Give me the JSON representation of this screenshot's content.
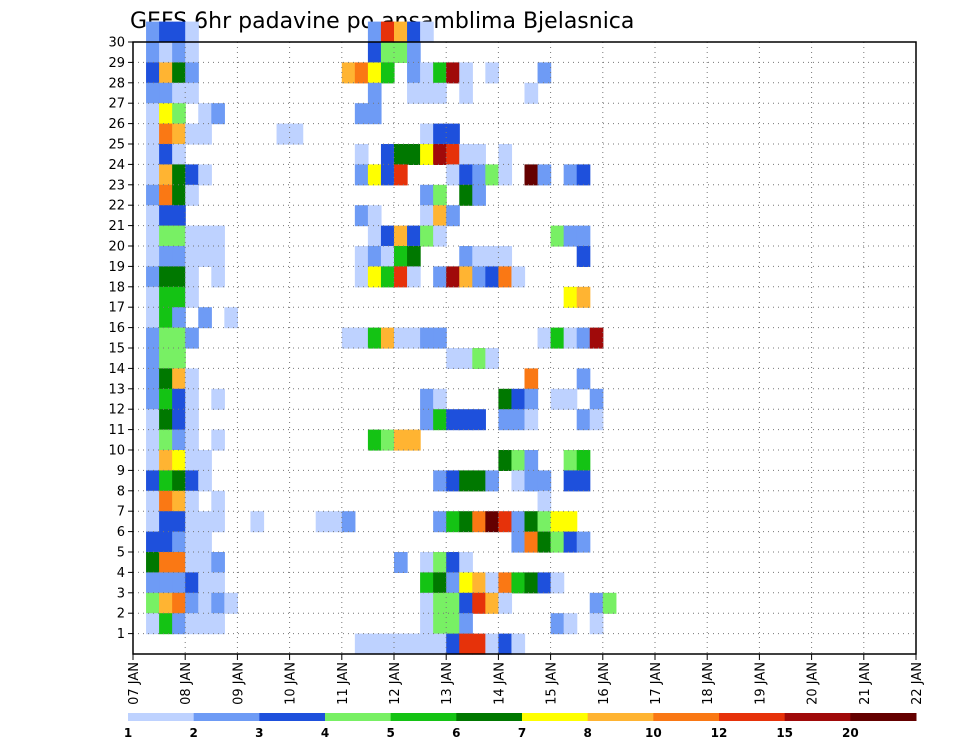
{
  "chart_data": {
    "type": "heatmap",
    "title": "GEFS 6hr padavine po ansamblima Bjelasnica",
    "xlabel": "",
    "ylabel": "",
    "x_ticks": [
      "07 JAN",
      "08 JAN",
      "09 JAN",
      "10 JAN",
      "11 JAN",
      "12 JAN",
      "13 JAN",
      "14 JAN",
      "15 JAN",
      "16 JAN",
      "17 JAN",
      "18 JAN",
      "19 JAN",
      "20 JAN",
      "21 JAN",
      "22 JAN"
    ],
    "y_ticks": [
      "1",
      "2",
      "3",
      "4",
      "5",
      "6",
      "7",
      "8",
      "9",
      "10",
      "11",
      "12",
      "13",
      "14",
      "15",
      "16",
      "17",
      "18",
      "19",
      "20",
      "21",
      "22",
      "23",
      "24",
      "25",
      "26",
      "27",
      "28",
      "29",
      "30"
    ],
    "xlim": [
      0,
      60
    ],
    "ylim": [
      0,
      30
    ],
    "grid": true,
    "colorbar": {
      "colors": [
        "#bed2ff",
        "#6e9bf5",
        "#1e50dc",
        "#78f064",
        "#14c314",
        "#007800",
        "#ffff00",
        "#ffb432",
        "#fa7814",
        "#e6320a",
        "#a00a0a",
        "#640000"
      ],
      "labels": [
        "1",
        "2",
        "3",
        "4",
        "5",
        "6",
        "7",
        "8",
        "10",
        "12",
        "15",
        "20"
      ]
    },
    "cells": [
      [
        1,
        30,
        1
      ],
      [
        2,
        30,
        2
      ],
      [
        3,
        30,
        2
      ],
      [
        4,
        30,
        0
      ],
      [
        18,
        30,
        1
      ],
      [
        19,
        30,
        9
      ],
      [
        20,
        30,
        7
      ],
      [
        21,
        30,
        2
      ],
      [
        22,
        30,
        0
      ],
      [
        1,
        29,
        1
      ],
      [
        2,
        29,
        0
      ],
      [
        3,
        29,
        1
      ],
      [
        4,
        29,
        0
      ],
      [
        18,
        29,
        2
      ],
      [
        19,
        29,
        3
      ],
      [
        20,
        29,
        3
      ],
      [
        21,
        29,
        1
      ],
      [
        1,
        28,
        2
      ],
      [
        2,
        28,
        7
      ],
      [
        3,
        28,
        5
      ],
      [
        4,
        28,
        1
      ],
      [
        16,
        28,
        7
      ],
      [
        17,
        28,
        8
      ],
      [
        18,
        28,
        6
      ],
      [
        19,
        28,
        4
      ],
      [
        21,
        28,
        1
      ],
      [
        22,
        28,
        0
      ],
      [
        23,
        28,
        4
      ],
      [
        24,
        28,
        10
      ],
      [
        25,
        28,
        0
      ],
      [
        27,
        28,
        0
      ],
      [
        31,
        28,
        1
      ],
      [
        1,
        27,
        1
      ],
      [
        2,
        27,
        1
      ],
      [
        3,
        27,
        0
      ],
      [
        4,
        27,
        0
      ],
      [
        18,
        27,
        1
      ],
      [
        21,
        27,
        0
      ],
      [
        22,
        27,
        0
      ],
      [
        23,
        27,
        0
      ],
      [
        25,
        27,
        0
      ],
      [
        30,
        27,
        0
      ],
      [
        1,
        26,
        0
      ],
      [
        2,
        26,
        6
      ],
      [
        3,
        26,
        3
      ],
      [
        5,
        26,
        0
      ],
      [
        6,
        26,
        1
      ],
      [
        17,
        26,
        1
      ],
      [
        18,
        26,
        1
      ],
      [
        1,
        25,
        0
      ],
      [
        2,
        25,
        8
      ],
      [
        3,
        25,
        7
      ],
      [
        4,
        25,
        0
      ],
      [
        5,
        25,
        0
      ],
      [
        11,
        25,
        0
      ],
      [
        12,
        25,
        0
      ],
      [
        22,
        25,
        0
      ],
      [
        23,
        25,
        2
      ],
      [
        24,
        25,
        2
      ],
      [
        1,
        24,
        0
      ],
      [
        2,
        24,
        2
      ],
      [
        3,
        24,
        0
      ],
      [
        17,
        24,
        0
      ],
      [
        19,
        24,
        2
      ],
      [
        20,
        24,
        5
      ],
      [
        21,
        24,
        5
      ],
      [
        22,
        24,
        6
      ],
      [
        23,
        24,
        10
      ],
      [
        24,
        24,
        9
      ],
      [
        25,
        24,
        0
      ],
      [
        26,
        24,
        0
      ],
      [
        28,
        24,
        0
      ],
      [
        1,
        23,
        0
      ],
      [
        2,
        23,
        7
      ],
      [
        3,
        23,
        5
      ],
      [
        4,
        23,
        2
      ],
      [
        5,
        23,
        0
      ],
      [
        17,
        23,
        1
      ],
      [
        18,
        23,
        6
      ],
      [
        19,
        23,
        2
      ],
      [
        20,
        23,
        9
      ],
      [
        24,
        23,
        0
      ],
      [
        25,
        23,
        2
      ],
      [
        26,
        23,
        1
      ],
      [
        27,
        23,
        3
      ],
      [
        28,
        23,
        0
      ],
      [
        30,
        23,
        11
      ],
      [
        31,
        23,
        1
      ],
      [
        33,
        23,
        1
      ],
      [
        34,
        23,
        2
      ],
      [
        1,
        22,
        1
      ],
      [
        2,
        22,
        8
      ],
      [
        3,
        22,
        5
      ],
      [
        4,
        22,
        0
      ],
      [
        22,
        22,
        1
      ],
      [
        23,
        22,
        3
      ],
      [
        25,
        22,
        5
      ],
      [
        26,
        22,
        1
      ],
      [
        1,
        21,
        0
      ],
      [
        2,
        21,
        2
      ],
      [
        3,
        21,
        2
      ],
      [
        17,
        21,
        1
      ],
      [
        18,
        21,
        0
      ],
      [
        22,
        21,
        0
      ],
      [
        23,
        21,
        7
      ],
      [
        24,
        21,
        1
      ],
      [
        1,
        20,
        0
      ],
      [
        2,
        20,
        3
      ],
      [
        3,
        20,
        3
      ],
      [
        4,
        20,
        0
      ],
      [
        5,
        20,
        0
      ],
      [
        6,
        20,
        0
      ],
      [
        18,
        20,
        0
      ],
      [
        19,
        20,
        2
      ],
      [
        20,
        20,
        7
      ],
      [
        21,
        20,
        2
      ],
      [
        22,
        20,
        3
      ],
      [
        23,
        20,
        0
      ],
      [
        32,
        20,
        3
      ],
      [
        33,
        20,
        1
      ],
      [
        34,
        20,
        1
      ],
      [
        1,
        19,
        0
      ],
      [
        2,
        19,
        1
      ],
      [
        3,
        19,
        1
      ],
      [
        4,
        19,
        0
      ],
      [
        5,
        19,
        0
      ],
      [
        6,
        19,
        0
      ],
      [
        17,
        19,
        0
      ],
      [
        18,
        19,
        1
      ],
      [
        19,
        19,
        0
      ],
      [
        20,
        19,
        4
      ],
      [
        21,
        19,
        5
      ],
      [
        25,
        19,
        1
      ],
      [
        26,
        19,
        0
      ],
      [
        27,
        19,
        0
      ],
      [
        28,
        19,
        0
      ],
      [
        34,
        19,
        2
      ],
      [
        1,
        18,
        1
      ],
      [
        2,
        18,
        5
      ],
      [
        3,
        18,
        5
      ],
      [
        4,
        18,
        0
      ],
      [
        6,
        18,
        0
      ],
      [
        17,
        18,
        0
      ],
      [
        18,
        18,
        6
      ],
      [
        19,
        18,
        4
      ],
      [
        20,
        18,
        9
      ],
      [
        21,
        18,
        0
      ],
      [
        23,
        18,
        1
      ],
      [
        24,
        18,
        10
      ],
      [
        25,
        18,
        7
      ],
      [
        26,
        18,
        1
      ],
      [
        27,
        18,
        2
      ],
      [
        28,
        18,
        8
      ],
      [
        29,
        18,
        0
      ],
      [
        1,
        17,
        0
      ],
      [
        2,
        17,
        4
      ],
      [
        3,
        17,
        4
      ],
      [
        4,
        17,
        0
      ],
      [
        33,
        17,
        6
      ],
      [
        34,
        17,
        7
      ],
      [
        1,
        16,
        0
      ],
      [
        2,
        16,
        4
      ],
      [
        3,
        16,
        1
      ],
      [
        5,
        16,
        1
      ],
      [
        7,
        16,
        0
      ],
      [
        1,
        15,
        1
      ],
      [
        2,
        15,
        3
      ],
      [
        3,
        15,
        3
      ],
      [
        4,
        15,
        1
      ],
      [
        16,
        15,
        0
      ],
      [
        17,
        15,
        0
      ],
      [
        18,
        15,
        4
      ],
      [
        19,
        15,
        7
      ],
      [
        20,
        15,
        0
      ],
      [
        21,
        15,
        0
      ],
      [
        22,
        15,
        1
      ],
      [
        23,
        15,
        1
      ],
      [
        31,
        15,
        0
      ],
      [
        32,
        15,
        4
      ],
      [
        33,
        15,
        0
      ],
      [
        34,
        15,
        1
      ],
      [
        35,
        15,
        10
      ],
      [
        1,
        14,
        1
      ],
      [
        2,
        14,
        3
      ],
      [
        3,
        14,
        3
      ],
      [
        24,
        14,
        0
      ],
      [
        25,
        14,
        0
      ],
      [
        26,
        14,
        3
      ],
      [
        27,
        14,
        0
      ],
      [
        1,
        13,
        1
      ],
      [
        2,
        13,
        5
      ],
      [
        3,
        13,
        7
      ],
      [
        4,
        13,
        0
      ],
      [
        30,
        13,
        8
      ],
      [
        34,
        13,
        1
      ],
      [
        1,
        12,
        1
      ],
      [
        2,
        12,
        4
      ],
      [
        3,
        12,
        2
      ],
      [
        4,
        12,
        0
      ],
      [
        6,
        12,
        0
      ],
      [
        22,
        12,
        1
      ],
      [
        23,
        12,
        0
      ],
      [
        28,
        12,
        5
      ],
      [
        29,
        12,
        2
      ],
      [
        30,
        12,
        1
      ],
      [
        32,
        12,
        0
      ],
      [
        33,
        12,
        0
      ],
      [
        35,
        12,
        1
      ],
      [
        1,
        11,
        0
      ],
      [
        2,
        11,
        5
      ],
      [
        3,
        11,
        2
      ],
      [
        4,
        11,
        0
      ],
      [
        22,
        11,
        1
      ],
      [
        23,
        11,
        4
      ],
      [
        24,
        11,
        2
      ],
      [
        25,
        11,
        2
      ],
      [
        26,
        11,
        2
      ],
      [
        28,
        11,
        1
      ],
      [
        29,
        11,
        1
      ],
      [
        30,
        11,
        0
      ],
      [
        34,
        11,
        1
      ],
      [
        35,
        11,
        0
      ],
      [
        1,
        10,
        0
      ],
      [
        2,
        10,
        3
      ],
      [
        3,
        10,
        1
      ],
      [
        4,
        10,
        0
      ],
      [
        6,
        10,
        0
      ],
      [
        18,
        10,
        4
      ],
      [
        19,
        10,
        3
      ],
      [
        20,
        10,
        7
      ],
      [
        21,
        10,
        7
      ],
      [
        1,
        9,
        0
      ],
      [
        2,
        9,
        7
      ],
      [
        3,
        9,
        6
      ],
      [
        4,
        9,
        0
      ],
      [
        5,
        9,
        0
      ],
      [
        28,
        9,
        5
      ],
      [
        29,
        9,
        3
      ],
      [
        30,
        9,
        1
      ],
      [
        33,
        9,
        3
      ],
      [
        34,
        9,
        4
      ],
      [
        1,
        8,
        2
      ],
      [
        2,
        8,
        4
      ],
      [
        3,
        8,
        5
      ],
      [
        4,
        8,
        2
      ],
      [
        5,
        8,
        0
      ],
      [
        23,
        8,
        1
      ],
      [
        24,
        8,
        2
      ],
      [
        25,
        8,
        5
      ],
      [
        26,
        8,
        5
      ],
      [
        27,
        8,
        1
      ],
      [
        29,
        8,
        0
      ],
      [
        30,
        8,
        1
      ],
      [
        31,
        8,
        1
      ],
      [
        33,
        8,
        2
      ],
      [
        34,
        8,
        2
      ],
      [
        1,
        7,
        0
      ],
      [
        2,
        7,
        8
      ],
      [
        3,
        7,
        7
      ],
      [
        4,
        7,
        0
      ],
      [
        6,
        7,
        0
      ],
      [
        31,
        7,
        0
      ],
      [
        1,
        6,
        0
      ],
      [
        2,
        6,
        2
      ],
      [
        3,
        6,
        2
      ],
      [
        4,
        6,
        0
      ],
      [
        5,
        6,
        0
      ],
      [
        6,
        6,
        0
      ],
      [
        9,
        6,
        0
      ],
      [
        14,
        6,
        0
      ],
      [
        15,
        6,
        0
      ],
      [
        16,
        6,
        1
      ],
      [
        23,
        6,
        1
      ],
      [
        24,
        6,
        4
      ],
      [
        25,
        6,
        5
      ],
      [
        26,
        6,
        8
      ],
      [
        27,
        6,
        11
      ],
      [
        28,
        6,
        9
      ],
      [
        29,
        6,
        1
      ],
      [
        30,
        6,
        5
      ],
      [
        31,
        6,
        3
      ],
      [
        32,
        6,
        6
      ],
      [
        33,
        6,
        6
      ],
      [
        1,
        5,
        2
      ],
      [
        2,
        5,
        2
      ],
      [
        3,
        5,
        1
      ],
      [
        4,
        5,
        0
      ],
      [
        5,
        5,
        0
      ],
      [
        29,
        5,
        1
      ],
      [
        30,
        5,
        8
      ],
      [
        31,
        5,
        5
      ],
      [
        32,
        5,
        3
      ],
      [
        33,
        5,
        2
      ],
      [
        34,
        5,
        1
      ],
      [
        1,
        4,
        5
      ],
      [
        2,
        4,
        8
      ],
      [
        3,
        4,
        8
      ],
      [
        4,
        4,
        0
      ],
      [
        5,
        4,
        0
      ],
      [
        6,
        4,
        1
      ],
      [
        20,
        4,
        1
      ],
      [
        22,
        4,
        0
      ],
      [
        23,
        4,
        3
      ],
      [
        24,
        4,
        2
      ],
      [
        25,
        4,
        0
      ],
      [
        1,
        3,
        1
      ],
      [
        2,
        3,
        1
      ],
      [
        3,
        3,
        1
      ],
      [
        4,
        3,
        2
      ],
      [
        5,
        3,
        0
      ],
      [
        6,
        3,
        0
      ],
      [
        22,
        3,
        4
      ],
      [
        23,
        3,
        5
      ],
      [
        24,
        3,
        1
      ],
      [
        25,
        3,
        6
      ],
      [
        26,
        3,
        7
      ],
      [
        27,
        3,
        0
      ],
      [
        28,
        3,
        8
      ],
      [
        29,
        3,
        4
      ],
      [
        30,
        3,
        5
      ],
      [
        31,
        3,
        2
      ],
      [
        32,
        3,
        0
      ],
      [
        1,
        2,
        3
      ],
      [
        2,
        2,
        7
      ],
      [
        3,
        2,
        8
      ],
      [
        4,
        2,
        1
      ],
      [
        5,
        2,
        0
      ],
      [
        6,
        2,
        1
      ],
      [
        7,
        2,
        0
      ],
      [
        22,
        2,
        0
      ],
      [
        23,
        2,
        3
      ],
      [
        24,
        2,
        3
      ],
      [
        25,
        2,
        2
      ],
      [
        26,
        2,
        9
      ],
      [
        27,
        2,
        7
      ],
      [
        28,
        2,
        0
      ],
      [
        35,
        2,
        1
      ],
      [
        36,
        2,
        3
      ],
      [
        1,
        1,
        0
      ],
      [
        2,
        1,
        4
      ],
      [
        3,
        1,
        1
      ],
      [
        4,
        1,
        0
      ],
      [
        5,
        1,
        0
      ],
      [
        6,
        1,
        0
      ],
      [
        22,
        1,
        0
      ],
      [
        23,
        1,
        3
      ],
      [
        24,
        1,
        3
      ],
      [
        25,
        1,
        1
      ],
      [
        32,
        1,
        1
      ],
      [
        33,
        1,
        0
      ],
      [
        35,
        1,
        0
      ],
      [
        17,
        0,
        0
      ],
      [
        18,
        0,
        0
      ],
      [
        19,
        0,
        0
      ],
      [
        20,
        0,
        0
      ],
      [
        21,
        0,
        0
      ],
      [
        22,
        0,
        0
      ],
      [
        23,
        0,
        0
      ],
      [
        24,
        0,
        2
      ],
      [
        25,
        0,
        9
      ],
      [
        26,
        0,
        9
      ],
      [
        27,
        0,
        0
      ],
      [
        28,
        0,
        2
      ],
      [
        29,
        0,
        0
      ]
    ]
  }
}
